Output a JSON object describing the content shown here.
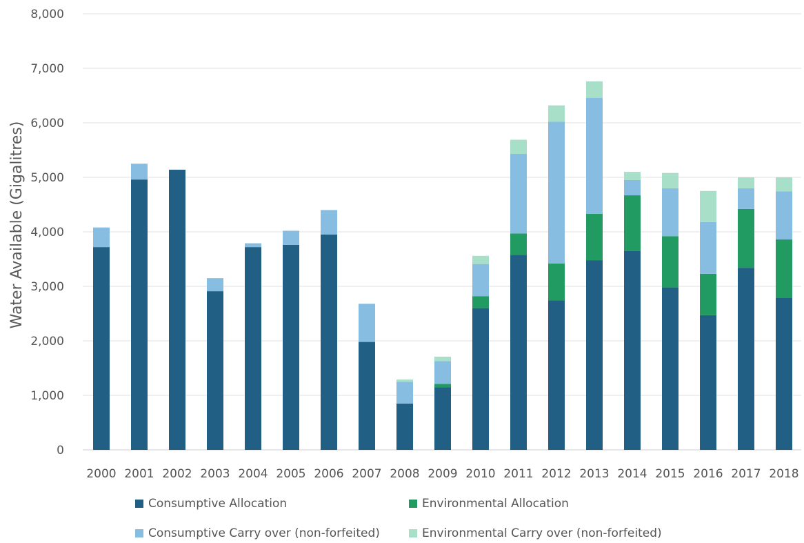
{
  "chart_data": {
    "type": "bar",
    "stacked": true,
    "title": "",
    "xlabel": "",
    "ylabel": "Water Available (Gigalitres)",
    "ylim": [
      0,
      8000
    ],
    "yticks": [
      0,
      1000,
      2000,
      3000,
      4000,
      5000,
      6000,
      7000,
      8000
    ],
    "ytick_labels": [
      "0",
      "1,000",
      "2,000",
      "3,000",
      "4,000",
      "5,000",
      "6,000",
      "7,000",
      "8,000"
    ],
    "grid": true,
    "legend_position": "bottom",
    "categories": [
      "2000",
      "2001",
      "2002",
      "2003",
      "2004",
      "2005",
      "2006",
      "2007",
      "2008",
      "2009",
      "2010",
      "2011",
      "2012",
      "2013",
      "2014",
      "2015",
      "2016",
      "2017",
      "2018"
    ],
    "series": [
      {
        "name": "Consumptive Allocation",
        "color": "#215f85",
        "values": [
          3720,
          4960,
          5140,
          2910,
          3720,
          3760,
          3950,
          1980,
          850,
          1150,
          2600,
          3580,
          2740,
          3480,
          3650,
          2980,
          2470,
          3340,
          2790
        ]
      },
      {
        "name": "Environmental Allocation",
        "color": "#229b62",
        "values": [
          0,
          0,
          0,
          0,
          0,
          0,
          0,
          0,
          0,
          60,
          220,
          390,
          680,
          850,
          1020,
          940,
          760,
          1080,
          1070
        ]
      },
      {
        "name": "Consumptive Carry over (non-forfeited)",
        "color": "#87bde1",
        "values": [
          360,
          290,
          0,
          240,
          70,
          260,
          450,
          700,
          400,
          420,
          590,
          1460,
          2600,
          2130,
          280,
          880,
          950,
          380,
          880
        ]
      },
      {
        "name": "Environmental Carry over (non-forfeited)",
        "color": "#a8dfc8",
        "values": [
          0,
          0,
          0,
          0,
          0,
          0,
          0,
          0,
          40,
          80,
          150,
          260,
          300,
          300,
          150,
          280,
          570,
          200,
          260
        ]
      }
    ]
  },
  "legend": {
    "items": [
      {
        "label": "Consumptive Allocation",
        "color": "#215f85"
      },
      {
        "label": "Environmental Allocation",
        "color": "#229b62"
      },
      {
        "label": "Consumptive Carry over (non-forfeited)",
        "color": "#87bde1"
      },
      {
        "label": "Environmental Carry over (non-forfeited)",
        "color": "#a8dfc8"
      }
    ]
  }
}
